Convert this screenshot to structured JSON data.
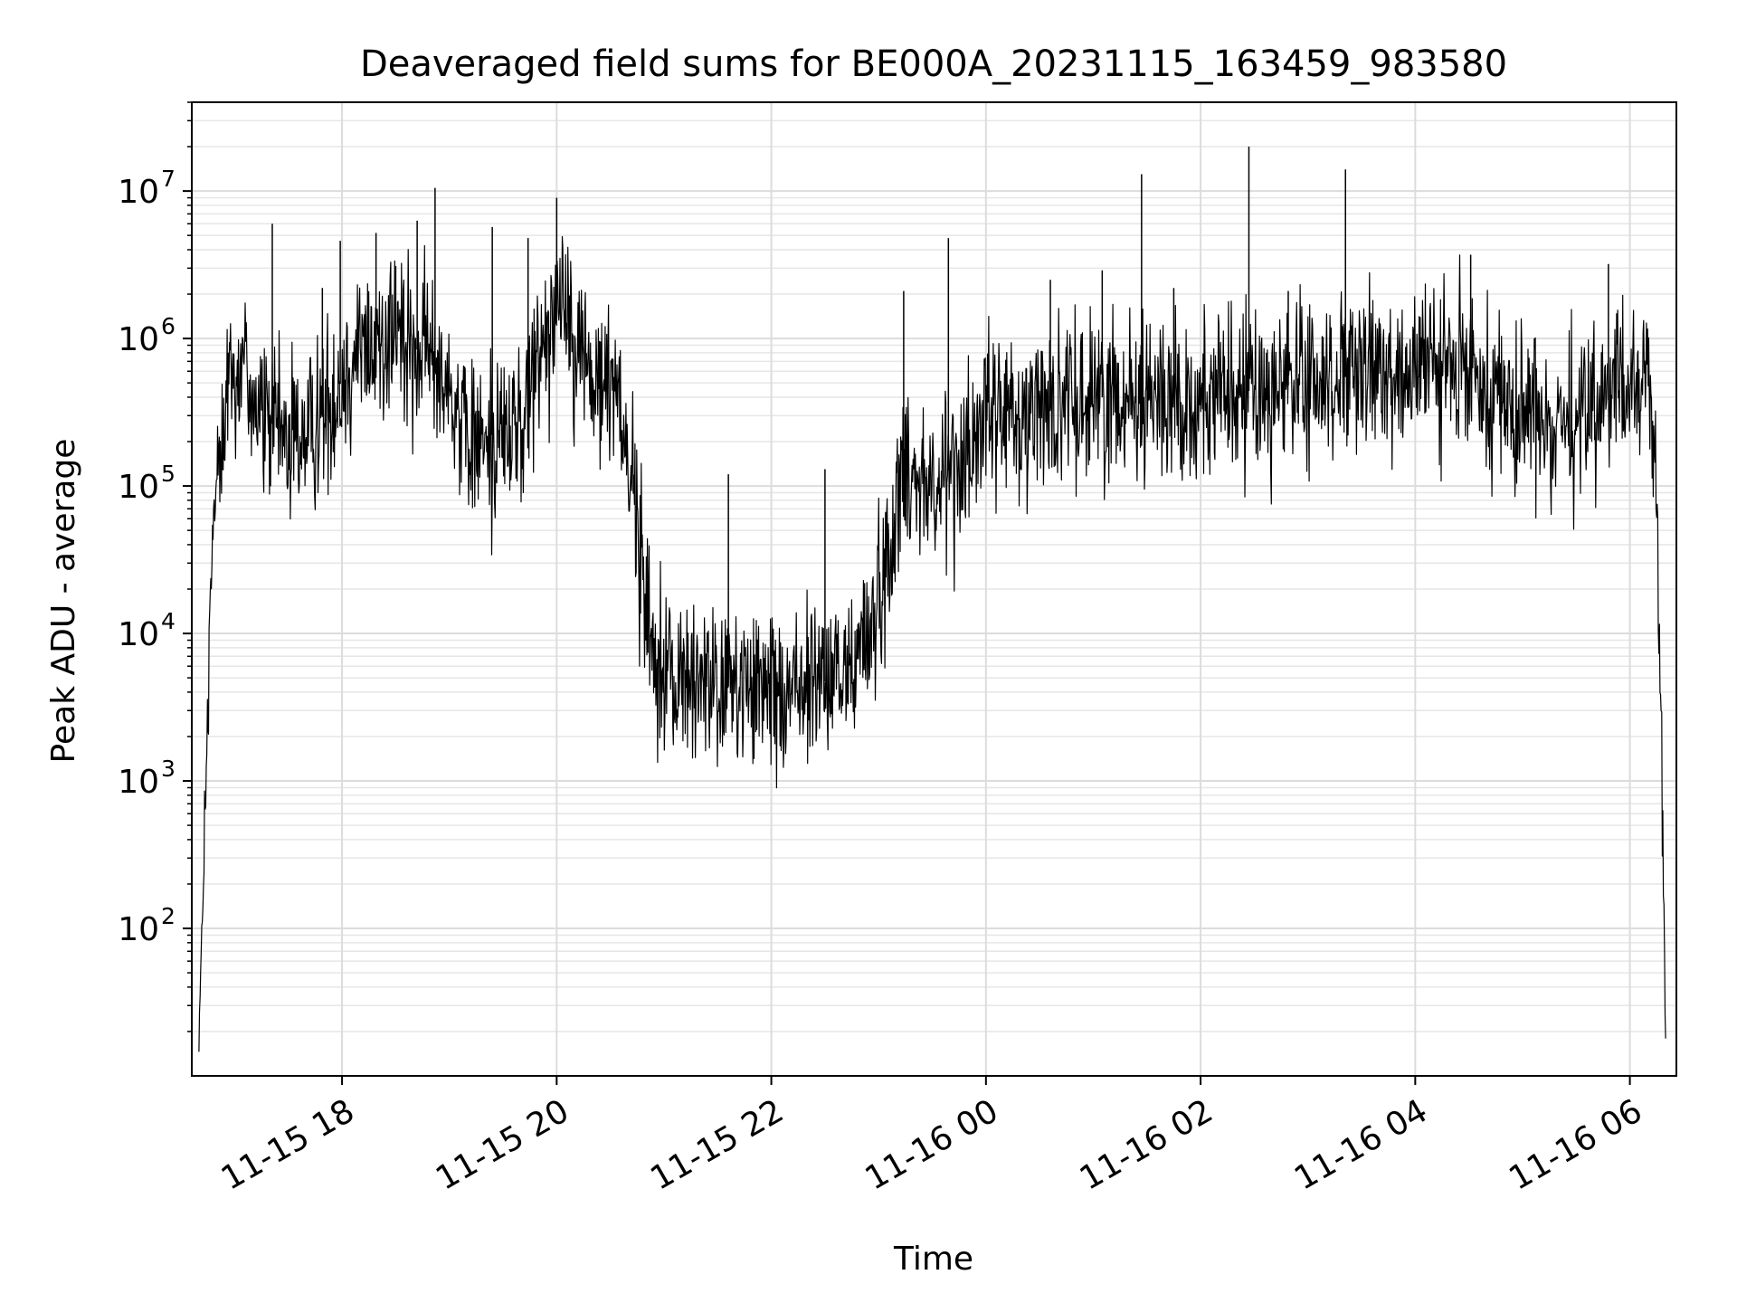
{
  "chart_data": {
    "type": "line",
    "title": "Deaveraged field sums for BE000A_20231115_163459_983580",
    "xlabel": "Time",
    "ylabel": "Peak ADU - average",
    "xscale": "time",
    "yscale": "log",
    "xlim": [
      "2023-11-15 16:36",
      "2023-11-16 06:26"
    ],
    "ylim": [
      10,
      40000000
    ],
    "grid": true,
    "line_color": "#000000",
    "x_ticks": [
      {
        "t": "2023-11-15 18:00",
        "label": "11-15 18"
      },
      {
        "t": "2023-11-15 20:00",
        "label": "11-15 20"
      },
      {
        "t": "2023-11-15 22:00",
        "label": "11-15 22"
      },
      {
        "t": "2023-11-16 00:00",
        "label": "11-16 00"
      },
      {
        "t": "2023-11-16 02:00",
        "label": "11-16 02"
      },
      {
        "t": "2023-11-16 04:00",
        "label": "11-16 04"
      },
      {
        "t": "2023-11-16 06:00",
        "label": "11-16 06"
      }
    ],
    "y_ticks": [
      {
        "exp": 2,
        "label": "10",
        "sup": "2"
      },
      {
        "exp": 3,
        "label": "10",
        "sup": "3"
      },
      {
        "exp": 4,
        "label": "10",
        "sup": "4"
      },
      {
        "exp": 5,
        "label": "10",
        "sup": "5"
      },
      {
        "exp": 6,
        "label": "10",
        "sup": "6"
      },
      {
        "exp": 7,
        "label": "10",
        "sup": "7"
      }
    ],
    "envelope": [
      {
        "t": "2023-11-15 16:40",
        "v": 20
      },
      {
        "t": "2023-11-15 16:44",
        "v": 800
      },
      {
        "t": "2023-11-15 16:48",
        "v": 60000
      },
      {
        "t": "2023-11-15 16:55",
        "v": 450000
      },
      {
        "t": "2023-11-15 17:05",
        "v": 700000
      },
      {
        "t": "2023-11-15 17:12",
        "v": 350000
      },
      {
        "t": "2023-11-15 17:30",
        "v": 200000
      },
      {
        "t": "2023-11-15 17:50",
        "v": 300000
      },
      {
        "t": "2023-11-15 18:10",
        "v": 900000
      },
      {
        "t": "2023-11-15 18:30",
        "v": 1000000
      },
      {
        "t": "2023-11-15 18:55",
        "v": 700000
      },
      {
        "t": "2023-11-15 19:10",
        "v": 200000
      },
      {
        "t": "2023-11-15 19:40",
        "v": 250000
      },
      {
        "t": "2023-11-15 19:55",
        "v": 1500000
      },
      {
        "t": "2023-11-15 20:05",
        "v": 2000000
      },
      {
        "t": "2023-11-15 20:20",
        "v": 500000
      },
      {
        "t": "2023-11-15 20:35",
        "v": 500000
      },
      {
        "t": "2023-11-15 20:45",
        "v": 60000
      },
      {
        "t": "2023-11-15 20:52",
        "v": 10000
      },
      {
        "t": "2023-11-15 21:00",
        "v": 5000
      },
      {
        "t": "2023-11-15 22:00",
        "v": 4000
      },
      {
        "t": "2023-11-15 22:40",
        "v": 5000
      },
      {
        "t": "2023-11-15 22:55",
        "v": 10000
      },
      {
        "t": "2023-11-15 23:05",
        "v": 30000
      },
      {
        "t": "2023-11-15 23:15",
        "v": 150000
      },
      {
        "t": "2023-11-15 23:30",
        "v": 100000
      },
      {
        "t": "2023-11-15 23:45",
        "v": 150000
      },
      {
        "t": "2023-11-16 00:00",
        "v": 300000
      },
      {
        "t": "2023-11-16 01:00",
        "v": 400000
      },
      {
        "t": "2023-11-16 02:00",
        "v": 400000
      },
      {
        "t": "2023-11-16 03:00",
        "v": 500000
      },
      {
        "t": "2023-11-16 04:00",
        "v": 650000
      },
      {
        "t": "2023-11-16 04:40",
        "v": 550000
      },
      {
        "t": "2023-11-16 05:00",
        "v": 300000
      },
      {
        "t": "2023-11-16 05:30",
        "v": 300000
      },
      {
        "t": "2023-11-16 06:00",
        "v": 450000
      },
      {
        "t": "2023-11-16 06:10",
        "v": 600000
      },
      {
        "t": "2023-11-16 06:15",
        "v": 100000
      },
      {
        "t": "2023-11-16 06:18",
        "v": 1000
      },
      {
        "t": "2023-11-16 06:20",
        "v": 15
      }
    ],
    "spikes": [
      {
        "t": "2023-11-15 17:21",
        "v": 6000000
      },
      {
        "t": "2023-11-15 17:49",
        "v": 2200000
      },
      {
        "t": "2023-11-15 17:59",
        "v": 4600000
      },
      {
        "t": "2023-11-15 18:19",
        "v": 5200000
      },
      {
        "t": "2023-11-15 18:30",
        "v": 3100000
      },
      {
        "t": "2023-11-15 18:42",
        "v": 6300000
      },
      {
        "t": "2023-11-15 18:52",
        "v": 10500000
      },
      {
        "t": "2023-11-15 19:24",
        "v": 5700000
      },
      {
        "t": "2023-11-15 19:44",
        "v": 4800000
      },
      {
        "t": "2023-11-15 20:00",
        "v": 9000000
      },
      {
        "t": "2023-11-15 21:36",
        "v": 120000
      },
      {
        "t": "2023-11-15 22:30",
        "v": 130000
      },
      {
        "t": "2023-11-15 23:14",
        "v": 2100000
      },
      {
        "t": "2023-11-15 23:39",
        "v": 4800000
      },
      {
        "t": "2023-11-16 00:36",
        "v": 2500000
      },
      {
        "t": "2023-11-16 01:05",
        "v": 2900000
      },
      {
        "t": "2023-11-16 01:27",
        "v": 13000000
      },
      {
        "t": "2023-11-16 01:45",
        "v": 2200000
      },
      {
        "t": "2023-11-16 02:27",
        "v": 20000000
      },
      {
        "t": "2023-11-16 02:49",
        "v": 2100000
      },
      {
        "t": "2023-11-16 03:21",
        "v": 14000000
      },
      {
        "t": "2023-11-16 04:31",
        "v": 3700000
      },
      {
        "t": "2023-11-16 05:48",
        "v": 3200000
      }
    ]
  }
}
